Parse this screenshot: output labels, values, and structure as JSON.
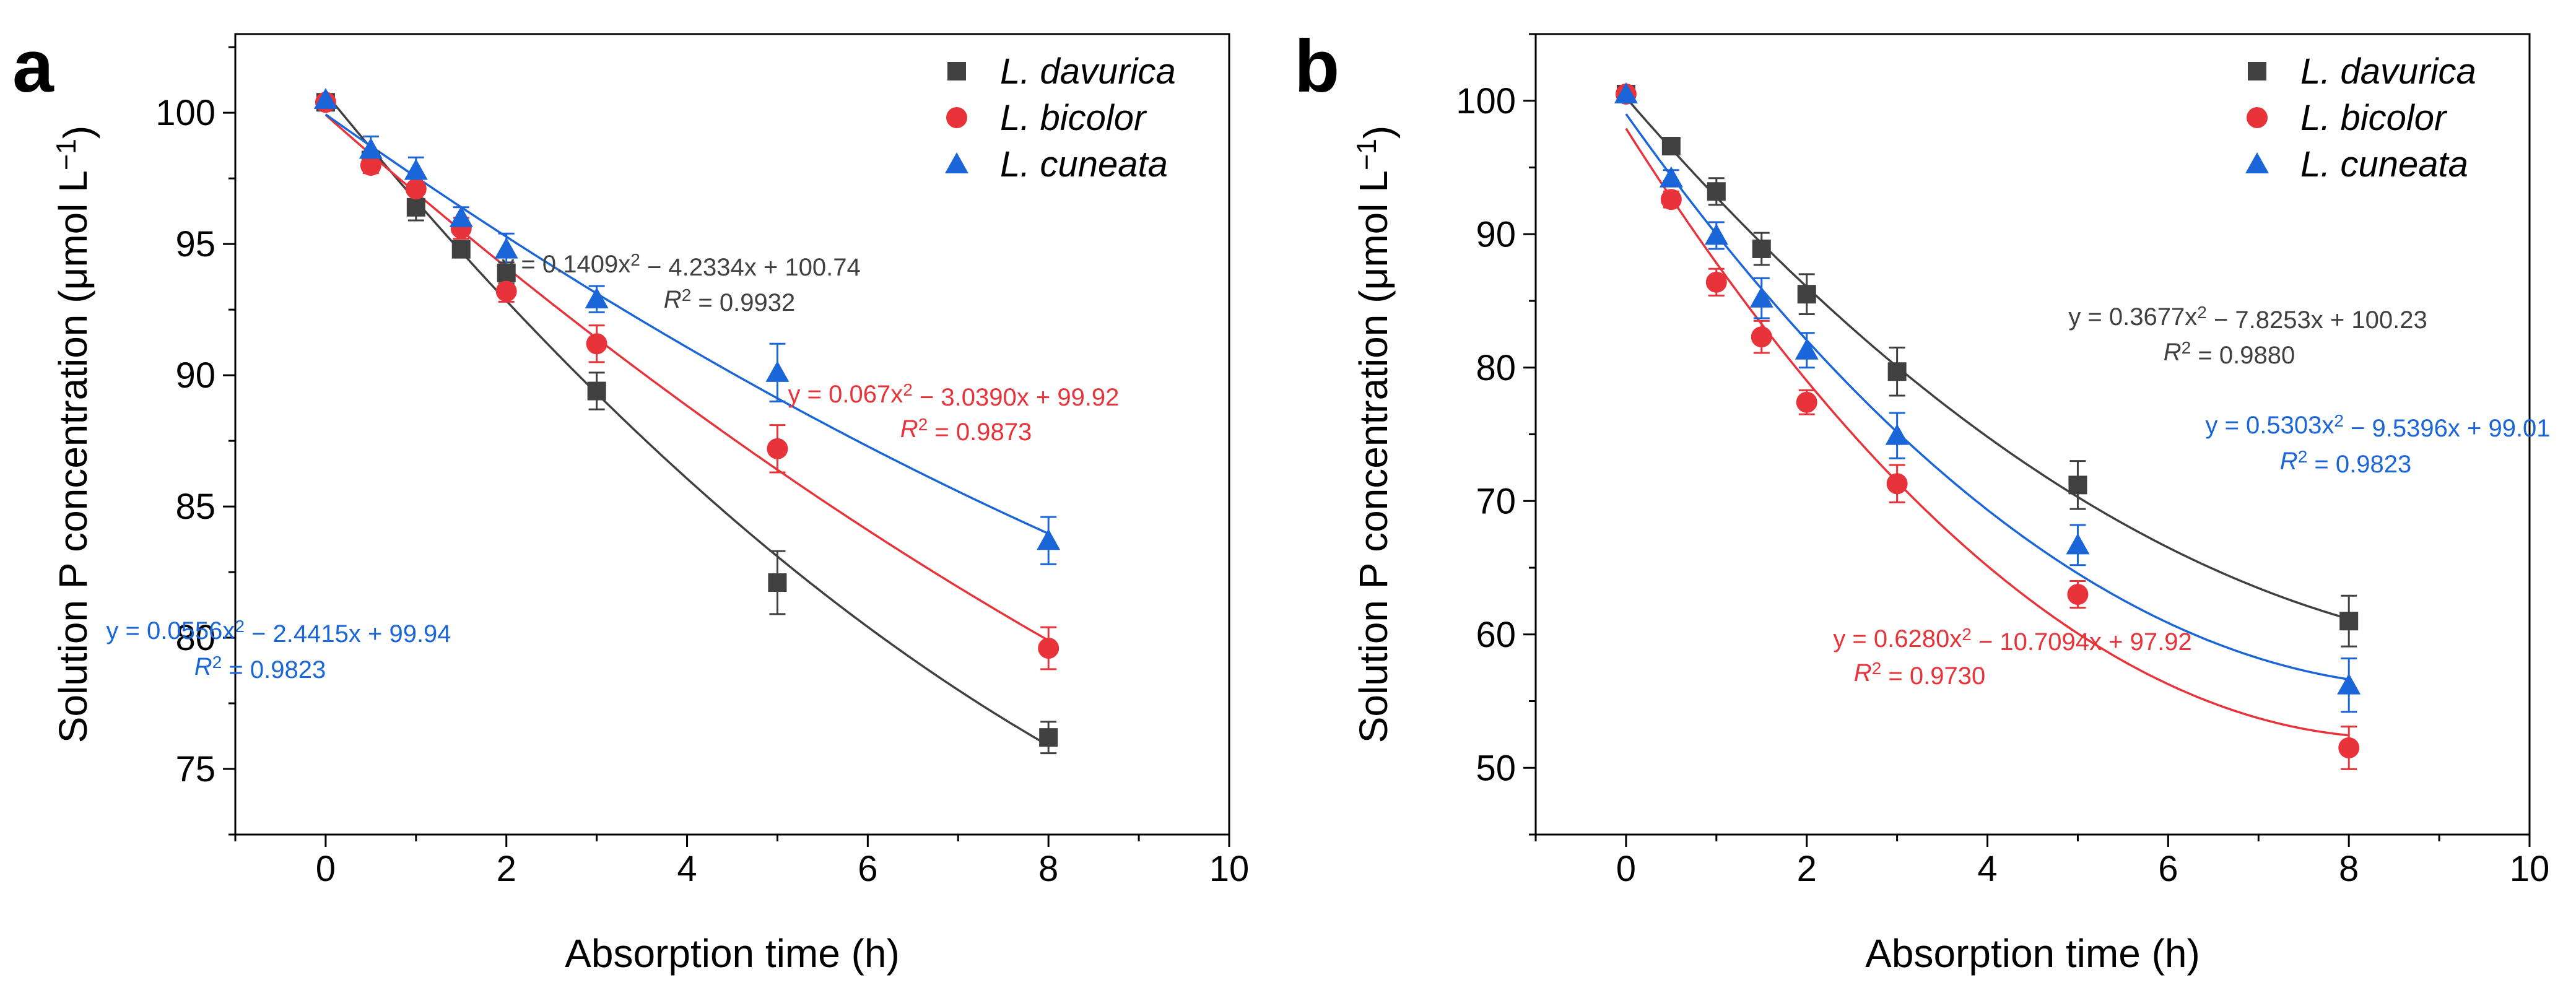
{
  "chart_data": [
    {
      "panel_label": "a",
      "type": "scatter",
      "xlabel": "Absorption time (h)",
      "ylabel": "Solution P concentration (μmol L⁻¹)",
      "xlim": [
        -1,
        10
      ],
      "ylim": [
        72.5,
        103
      ],
      "xticks": [
        0,
        2,
        4,
        6,
        8,
        10
      ],
      "yticks": [
        75,
        80,
        85,
        90,
        95,
        100
      ],
      "grid": false,
      "legend_position": "top-right",
      "x": [
        0,
        0.5,
        1,
        1.5,
        2,
        3,
        5,
        8
      ],
      "series": [
        {
          "name": "L. davurica",
          "marker": "square",
          "color": "#404040",
          "values": [
            100.4,
            98.2,
            96.4,
            94.8,
            93.9,
            89.4,
            82.1,
            76.2
          ],
          "errors": [
            0.2,
            0.3,
            0.5,
            0.3,
            0.4,
            0.7,
            1.2,
            0.6
          ],
          "fit": {
            "a": 0.1409,
            "b": -4.2334,
            "c": 100.74
          },
          "equation": "y = 0.1409x² − 4.2334x + 100.74",
          "r2": "R² = 0.9932"
        },
        {
          "name": "L. bicolor",
          "marker": "circle",
          "color": "#e8333a",
          "values": [
            100.4,
            98.0,
            97.1,
            95.6,
            93.2,
            91.2,
            87.2,
            79.6
          ],
          "errors": [
            0.2,
            0.3,
            0.5,
            0.4,
            0.4,
            0.7,
            0.9,
            0.8
          ],
          "fit": {
            "a": 0.067,
            "b": -3.039,
            "c": 99.92
          },
          "equation": "y = 0.067x² − 3.0390x + 99.92",
          "r2": "R² = 0.9873"
        },
        {
          "name": "L. cuneata",
          "marker": "triangle",
          "color": "#1a66d9",
          "values": [
            100.5,
            98.6,
            97.8,
            96.0,
            94.8,
            92.9,
            90.1,
            83.7
          ],
          "errors": [
            0.2,
            0.5,
            0.5,
            0.4,
            0.6,
            0.5,
            1.1,
            0.9
          ],
          "fit": {
            "a": 0.0556,
            "b": -2.4415,
            "c": 99.94
          },
          "equation": "y = 0.0556x² − 2.4415x + 99.94",
          "r2": "R² = 0.9823"
        }
      ]
    },
    {
      "panel_label": "b",
      "type": "scatter",
      "xlabel": "Absorption time (h)",
      "ylabel": "Solution P concentration (μmol L⁻¹)",
      "xlim": [
        -1,
        10
      ],
      "ylim": [
        45,
        105
      ],
      "xticks": [
        0,
        2,
        4,
        6,
        8,
        10
      ],
      "yticks": [
        50,
        60,
        70,
        80,
        90,
        100
      ],
      "grid": false,
      "legend_position": "top-right",
      "x": [
        0,
        0.5,
        1,
        1.5,
        2,
        3,
        5,
        8
      ],
      "series": [
        {
          "name": "L. davurica",
          "marker": "square",
          "color": "#404040",
          "values": [
            100.5,
            96.6,
            93.2,
            88.9,
            85.5,
            79.7,
            71.2,
            61.0
          ],
          "errors": [
            0.4,
            0.6,
            1.0,
            1.2,
            1.5,
            1.8,
            1.8,
            1.9
          ],
          "fit": {
            "a": 0.3677,
            "b": -7.8253,
            "c": 100.23
          },
          "equation": "y = 0.3677x² − 7.8253x + 100.23",
          "r2": "R² = 0.9880"
        },
        {
          "name": "L. bicolor",
          "marker": "circle",
          "color": "#e8333a",
          "values": [
            100.5,
            92.6,
            86.4,
            82.3,
            77.4,
            71.3,
            63.0,
            51.5
          ],
          "errors": [
            0.4,
            0.6,
            1.0,
            1.2,
            0.9,
            1.4,
            1.0,
            1.6
          ],
          "fit": {
            "a": 0.628,
            "b": -10.7094,
            "c": 97.92
          },
          "equation": "y = 0.6280x² − 10.7094x + 97.92",
          "r2": "R² = 0.9730"
        },
        {
          "name": "L. cuneata",
          "marker": "triangle",
          "color": "#1a66d9",
          "values": [
            100.5,
            94.2,
            89.9,
            85.2,
            81.3,
            74.9,
            66.7,
            56.2
          ],
          "errors": [
            0.4,
            0.6,
            1.0,
            1.5,
            1.3,
            1.7,
            1.5,
            2.0
          ],
          "fit": {
            "a": 0.5303,
            "b": -9.5396,
            "c": 99.01
          },
          "equation": "y = 0.5303x² − 9.5396x + 99.01",
          "r2": "R² = 0.9823"
        }
      ]
    }
  ]
}
